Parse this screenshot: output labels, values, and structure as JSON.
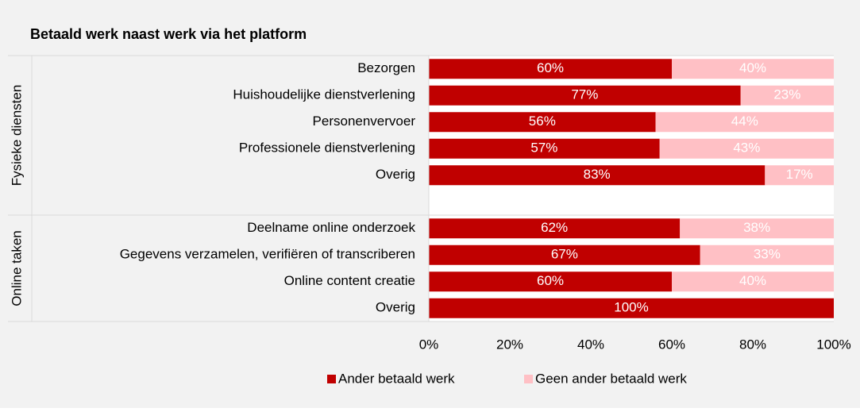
{
  "chart_data": {
    "type": "stacked_barh",
    "title": "Betaald werk naast werk via het platform",
    "series": [
      {
        "name": "Ander betaald werk",
        "color": "#c00000"
      },
      {
        "name": "Geen ander betaald werk",
        "color": "#ffc0c5"
      }
    ],
    "groups": [
      {
        "name": "Fysieke diensten",
        "categories": [
          "Bezorgen",
          "Huishoudelijke dienstverlening",
          "Personenvervoer",
          "Professionele dienstverlening",
          "Overig"
        ],
        "values": [
          [
            60,
            77,
            56,
            57,
            83
          ],
          [
            40,
            23,
            44,
            43,
            17
          ]
        ],
        "value_labels": [
          [
            "60%",
            "77%",
            "56%",
            "57%",
            "83%"
          ],
          [
            "40%",
            "23%",
            "44%",
            "43%",
            "17%"
          ]
        ]
      },
      {
        "name": "Online taken",
        "categories": [
          "Deelname online onderzoek",
          "Gegevens verzamelen, verifiëren of transcriberen",
          "Online content creatie",
          "Overig"
        ],
        "values": [
          [
            62,
            67,
            60,
            100
          ],
          [
            38,
            33,
            40,
            0
          ]
        ],
        "value_labels": [
          [
            "62%",
            "67%",
            "60%",
            "100%"
          ],
          [
            "38%",
            "33%",
            "40%",
            null
          ]
        ]
      }
    ],
    "xlim": [
      0,
      100
    ],
    "xticks": [
      {
        "value": 0,
        "label": "0%"
      },
      {
        "value": 20,
        "label": "20%"
      },
      {
        "value": 40,
        "label": "40%"
      },
      {
        "value": 60,
        "label": "60%"
      },
      {
        "value": 80,
        "label": "80%"
      },
      {
        "value": 100,
        "label": "100%"
      }
    ]
  }
}
